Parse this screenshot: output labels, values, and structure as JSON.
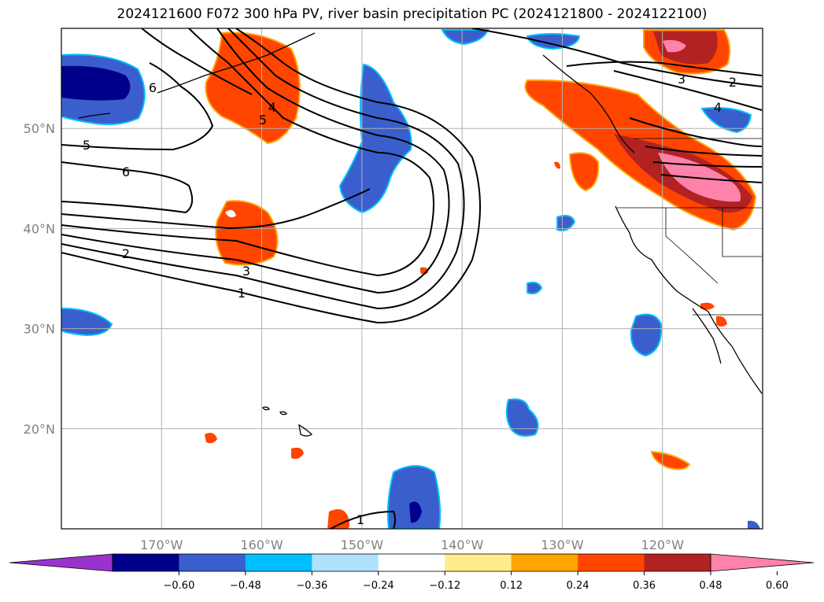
{
  "title": "2024121600 F072 300 hPa PV, river basin precipitation PC (2024121800 - 2024122100)",
  "map": {
    "lon_range": [
      -180,
      -110
    ],
    "lat_range": [
      10,
      60
    ],
    "lon_ticks": [
      {
        "lon": -170,
        "label": "170°W"
      },
      {
        "lon": -160,
        "label": "160°W"
      },
      {
        "lon": -150,
        "label": "150°W"
      },
      {
        "lon": -140,
        "label": "140°W"
      },
      {
        "lon": -130,
        "label": "130°W"
      },
      {
        "lon": -120,
        "label": "120°W"
      }
    ],
    "lat_ticks": [
      {
        "lat": 50,
        "label": "50°N"
      },
      {
        "lat": 40,
        "label": "40°N"
      },
      {
        "lat": 30,
        "label": "30°N"
      },
      {
        "lat": 20,
        "label": "20°N"
      }
    ],
    "grid": true,
    "contour_labels": [
      "6",
      "5",
      "6",
      "4",
      "5",
      "2",
      "3",
      "1",
      "3",
      "2",
      "4",
      "1"
    ]
  },
  "colorbar": {
    "ticks": [
      "−0.60",
      "−0.48",
      "−0.36",
      "−0.24",
      "−0.12",
      "0.12",
      "0.24",
      "0.36",
      "0.48",
      "0.60"
    ],
    "colors": [
      "#9933cc",
      "#00008b",
      "#3a5fcd",
      "#00bfff",
      "#b0e2ff",
      "#ffffff",
      "#ffec8b",
      "#ffa500",
      "#ff4500",
      "#b22222",
      "#ff82ab"
    ],
    "extend": "both"
  }
}
